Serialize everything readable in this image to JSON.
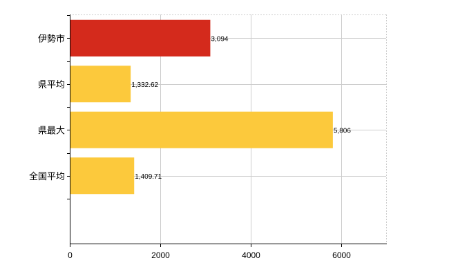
{
  "chart_data": {
    "type": "bar",
    "orientation": "horizontal",
    "title": "",
    "xlabel": "",
    "ylabel": "",
    "categories": [
      "伊勢市",
      "県平均",
      "県最大",
      "全国平均"
    ],
    "values": [
      3094,
      1332.62,
      5806,
      1409.71
    ],
    "value_labels": [
      "3,094",
      "1,332.62",
      "5,806",
      "1,409.71"
    ],
    "bar_colors": [
      "#d42a1c",
      "#fcc93c",
      "#fcc93c",
      "#fcc93c"
    ],
    "xlim": [
      0,
      7000
    ],
    "x_ticks": [
      0,
      2000,
      4000,
      6000
    ],
    "x_tick_labels": [
      "0",
      "2000",
      "4000",
      "6000"
    ],
    "grid": true,
    "legend": "none"
  }
}
